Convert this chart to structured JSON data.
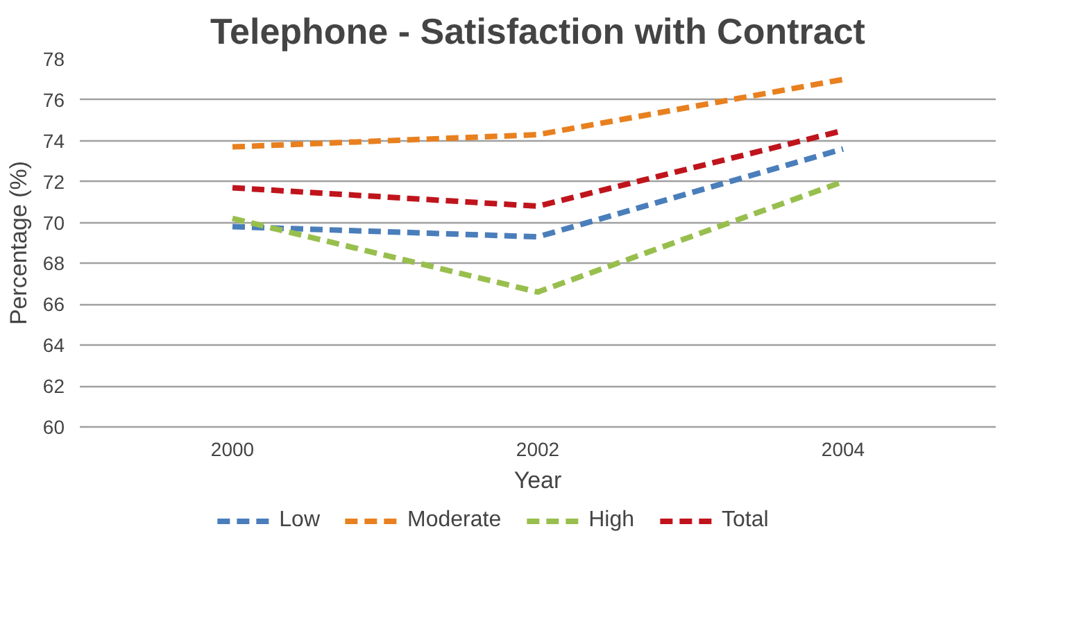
{
  "chart_data": {
    "type": "line",
    "title": "Telephone - Satisfaction with Contract",
    "xlabel": "Year",
    "ylabel": "Percentage (%)",
    "categories": [
      "2000",
      "2002",
      "2004"
    ],
    "series": [
      {
        "name": "Low",
        "color": "#4a7ebb",
        "values": [
          69.8,
          69.3,
          73.6
        ]
      },
      {
        "name": "Moderate",
        "color": "#e8801f",
        "values": [
          73.7,
          74.3,
          77.0
        ]
      },
      {
        "name": "High",
        "color": "#98bf4d",
        "values": [
          70.2,
          66.6,
          72.0
        ]
      },
      {
        "name": "Total",
        "color": "#c0141c",
        "values": [
          71.7,
          70.8,
          74.5
        ]
      }
    ],
    "ylim": [
      60,
      78
    ],
    "yticks": [
      60,
      62,
      64,
      66,
      68,
      70,
      72,
      74,
      76,
      78
    ],
    "grid": "y",
    "legend": "bottom",
    "line_style": "dashed",
    "marker": "none"
  }
}
